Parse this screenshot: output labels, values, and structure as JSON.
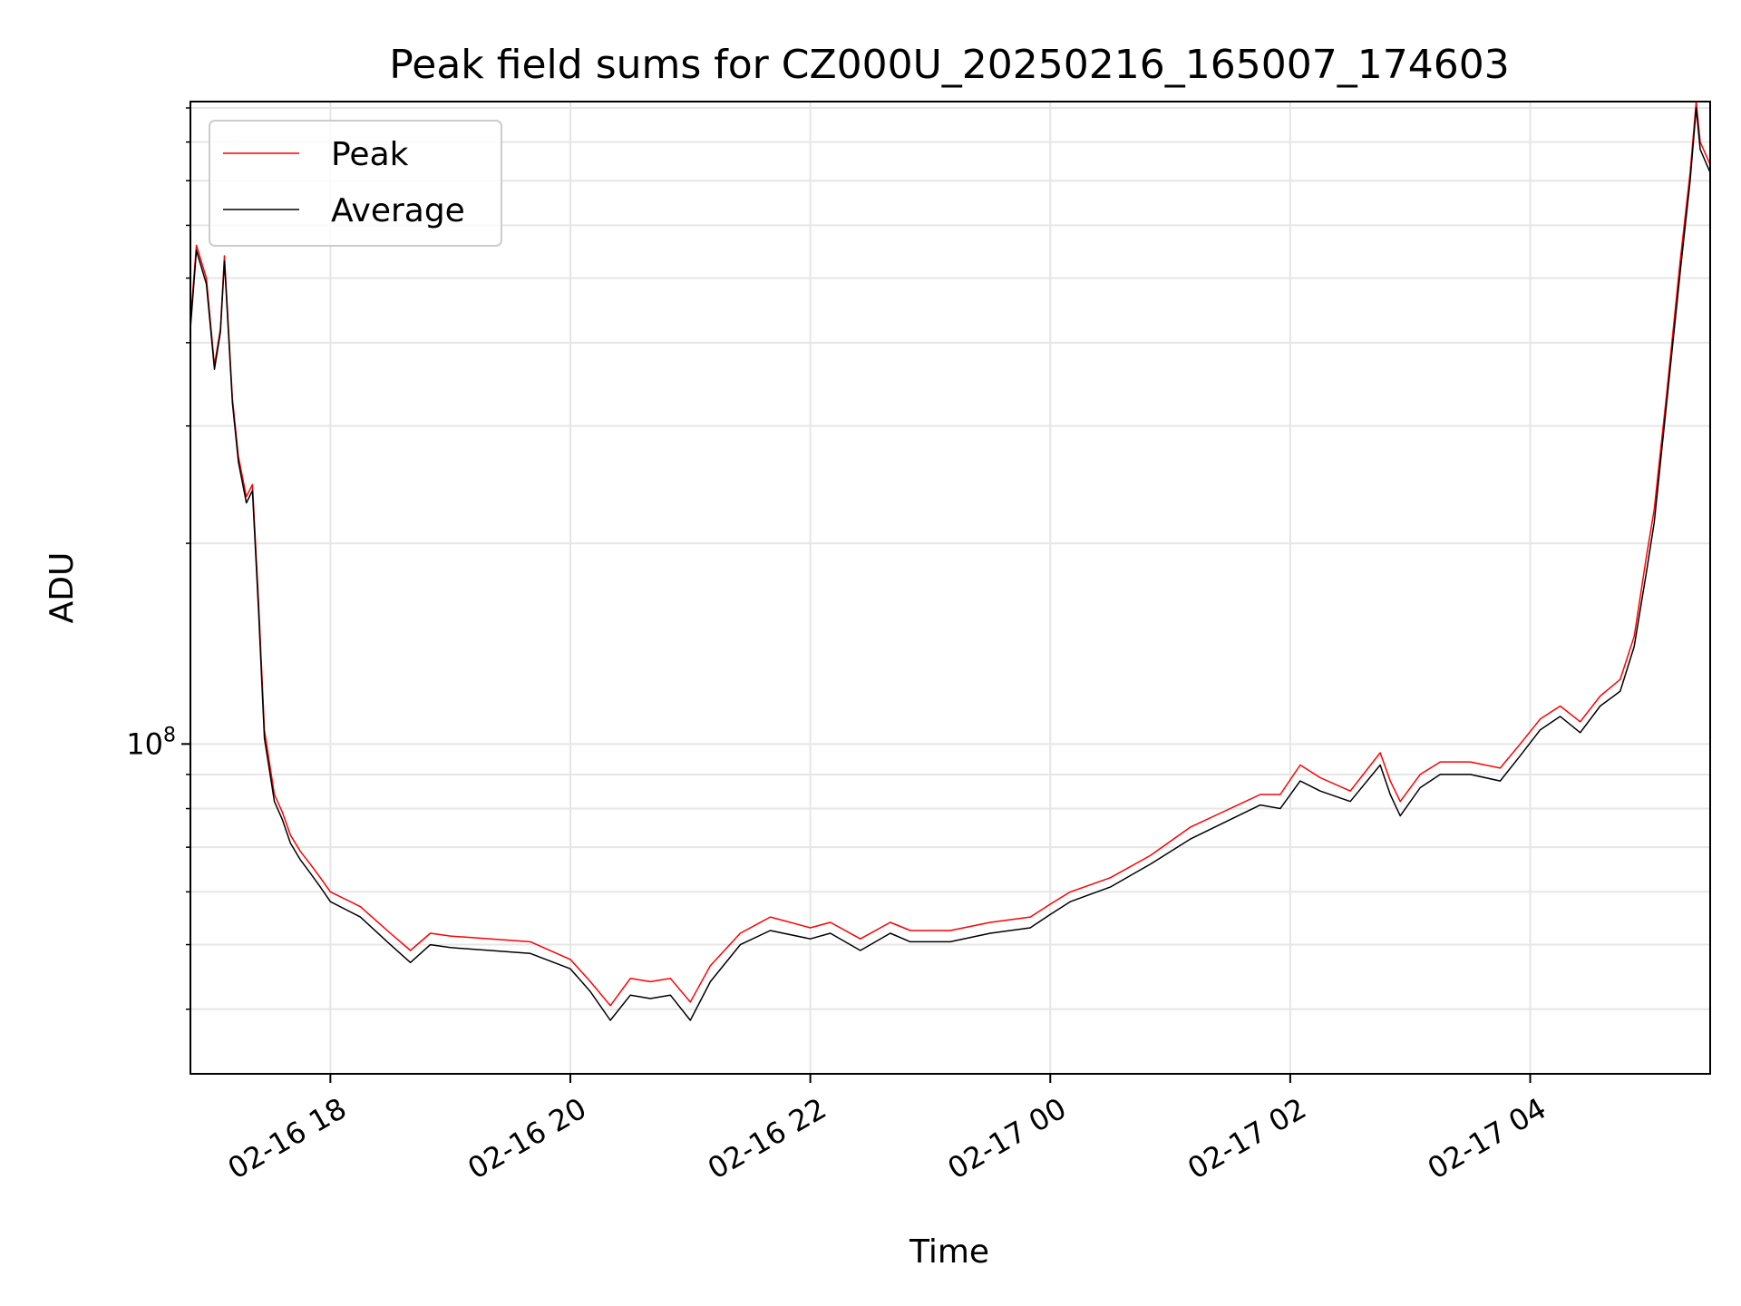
{
  "chart_data": {
    "type": "line",
    "title": "Peak field sums for CZ000U_20250216_165007_174603",
    "xlabel": "Time",
    "ylabel": "ADU",
    "y_scale": "log",
    "grid": true,
    "legend_position": "top-left",
    "xlim": [
      "2025-02-16 16:50",
      "2025-02-17 05:30"
    ],
    "ylim": [
      32000000,
      920000000
    ],
    "x_ticks": [
      {
        "value": "2025-02-16 18:00",
        "label": "02-16 18"
      },
      {
        "value": "2025-02-16 20:00",
        "label": "02-16 20"
      },
      {
        "value": "2025-02-16 22:00",
        "label": "02-16 22"
      },
      {
        "value": "2025-02-17 00:00",
        "label": "02-17 00"
      },
      {
        "value": "2025-02-17 02:00",
        "label": "02-17 02"
      },
      {
        "value": "2025-02-17 04:00",
        "label": "02-17 04"
      }
    ],
    "y_ticks": [
      {
        "value": 100000000,
        "base": "10",
        "exponent": "8"
      }
    ],
    "y_minor_ticks": [
      40000000,
      50000000,
      60000000,
      70000000,
      80000000,
      90000000,
      200000000,
      300000000,
      400000000,
      500000000,
      600000000,
      700000000,
      800000000,
      900000000
    ],
    "series": [
      {
        "name": "Peak",
        "color": "#ff0000",
        "x": [
          "2025-02-16 16:50",
          "2025-02-16 16:53",
          "2025-02-16 16:58",
          "2025-02-16 17:02",
          "2025-02-16 17:05",
          "2025-02-16 17:07",
          "2025-02-16 17:11",
          "2025-02-16 17:14",
          "2025-02-16 17:18",
          "2025-02-16 17:21",
          "2025-02-16 17:24",
          "2025-02-16 17:27",
          "2025-02-16 17:32",
          "2025-02-16 17:36",
          "2025-02-16 17:40",
          "2025-02-16 17:45",
          "2025-02-16 17:50",
          "2025-02-16 17:55",
          "2025-02-16 18:00",
          "2025-02-16 18:15",
          "2025-02-16 18:30",
          "2025-02-16 18:40",
          "2025-02-16 18:50",
          "2025-02-16 19:00",
          "2025-02-16 19:20",
          "2025-02-16 19:40",
          "2025-02-16 20:00",
          "2025-02-16 20:10",
          "2025-02-16 20:20",
          "2025-02-16 20:30",
          "2025-02-16 20:40",
          "2025-02-16 20:50",
          "2025-02-16 21:00",
          "2025-02-16 21:10",
          "2025-02-16 21:25",
          "2025-02-16 21:40",
          "2025-02-16 22:00",
          "2025-02-16 22:10",
          "2025-02-16 22:25",
          "2025-02-16 22:40",
          "2025-02-16 22:50",
          "2025-02-16 23:10",
          "2025-02-16 23:30",
          "2025-02-16 23:50",
          "2025-02-17 00:00",
          "2025-02-17 00:10",
          "2025-02-17 00:30",
          "2025-02-17 00:50",
          "2025-02-17 01:10",
          "2025-02-17 01:30",
          "2025-02-17 01:45",
          "2025-02-17 01:55",
          "2025-02-17 02:05",
          "2025-02-17 02:15",
          "2025-02-17 02:30",
          "2025-02-17 02:45",
          "2025-02-17 02:50",
          "2025-02-17 02:55",
          "2025-02-17 03:05",
          "2025-02-17 03:15",
          "2025-02-17 03:30",
          "2025-02-17 03:45",
          "2025-02-17 03:55",
          "2025-02-17 04:05",
          "2025-02-17 04:15",
          "2025-02-17 04:25",
          "2025-02-17 04:35",
          "2025-02-17 04:45",
          "2025-02-17 04:52",
          "2025-02-17 04:58",
          "2025-02-17 05:02",
          "2025-02-17 05:08",
          "2025-02-17 05:15",
          "2025-02-17 05:20",
          "2025-02-17 05:23",
          "2025-02-17 05:25",
          "2025-02-17 05:30"
        ],
        "y": [
          430000000,
          560000000,
          500000000,
          370000000,
          420000000,
          540000000,
          330000000,
          270000000,
          235000000,
          245000000,
          165000000,
          105000000,
          84000000,
          79000000,
          73000000,
          69000000,
          66000000,
          63000000,
          60000000,
          57000000,
          52000000,
          49000000,
          52000000,
          51500000,
          51000000,
          50500000,
          47500000,
          44000000,
          40500000,
          44500000,
          44000000,
          44500000,
          41000000,
          46500000,
          52000000,
          55000000,
          53000000,
          54000000,
          51000000,
          54000000,
          52500000,
          52500000,
          54000000,
          55000000,
          57500000,
          60000000,
          63000000,
          68000000,
          75000000,
          80000000,
          84000000,
          84000000,
          93000000,
          89000000,
          85000000,
          97000000,
          88000000,
          82000000,
          90000000,
          94000000,
          94000000,
          92000000,
          100000000,
          109000000,
          114000000,
          108000000,
          118000000,
          125000000,
          145000000,
          190000000,
          225000000,
          330000000,
          530000000,
          720000000,
          920000000,
          800000000,
          740000000
        ]
      },
      {
        "name": "Average",
        "color": "#000000",
        "x": [
          "2025-02-16 16:50",
          "2025-02-16 16:53",
          "2025-02-16 16:58",
          "2025-02-16 17:02",
          "2025-02-16 17:05",
          "2025-02-16 17:07",
          "2025-02-16 17:11",
          "2025-02-16 17:14",
          "2025-02-16 17:18",
          "2025-02-16 17:21",
          "2025-02-16 17:24",
          "2025-02-16 17:27",
          "2025-02-16 17:32",
          "2025-02-16 17:36",
          "2025-02-16 17:40",
          "2025-02-16 17:45",
          "2025-02-16 17:50",
          "2025-02-16 17:55",
          "2025-02-16 18:00",
          "2025-02-16 18:15",
          "2025-02-16 18:30",
          "2025-02-16 18:40",
          "2025-02-16 18:50",
          "2025-02-16 19:00",
          "2025-02-16 19:20",
          "2025-02-16 19:40",
          "2025-02-16 20:00",
          "2025-02-16 20:10",
          "2025-02-16 20:20",
          "2025-02-16 20:30",
          "2025-02-16 20:40",
          "2025-02-16 20:50",
          "2025-02-16 21:00",
          "2025-02-16 21:10",
          "2025-02-16 21:25",
          "2025-02-16 21:40",
          "2025-02-16 22:00",
          "2025-02-16 22:10",
          "2025-02-16 22:25",
          "2025-02-16 22:40",
          "2025-02-16 22:50",
          "2025-02-16 23:10",
          "2025-02-16 23:30",
          "2025-02-16 23:50",
          "2025-02-17 00:00",
          "2025-02-17 00:10",
          "2025-02-17 00:30",
          "2025-02-17 00:50",
          "2025-02-17 01:10",
          "2025-02-17 01:30",
          "2025-02-17 01:45",
          "2025-02-17 01:55",
          "2025-02-17 02:05",
          "2025-02-17 02:15",
          "2025-02-17 02:30",
          "2025-02-17 02:45",
          "2025-02-17 02:50",
          "2025-02-17 02:55",
          "2025-02-17 03:05",
          "2025-02-17 03:15",
          "2025-02-17 03:30",
          "2025-02-17 03:45",
          "2025-02-17 03:55",
          "2025-02-17 04:05",
          "2025-02-17 04:15",
          "2025-02-17 04:25",
          "2025-02-17 04:35",
          "2025-02-17 04:45",
          "2025-02-17 04:52",
          "2025-02-17 04:58",
          "2025-02-17 05:02",
          "2025-02-17 05:08",
          "2025-02-17 05:15",
          "2025-02-17 05:20",
          "2025-02-17 05:23",
          "2025-02-17 05:25",
          "2025-02-17 05:30"
        ],
        "y": [
          420000000,
          550000000,
          490000000,
          365000000,
          415000000,
          530000000,
          325000000,
          265000000,
          230000000,
          240000000,
          160000000,
          102000000,
          82000000,
          77000000,
          71000000,
          67000000,
          64000000,
          61000000,
          58000000,
          55000000,
          50000000,
          47000000,
          50000000,
          49500000,
          49000000,
          48500000,
          46000000,
          42500000,
          38500000,
          42000000,
          41500000,
          42000000,
          38500000,
          44000000,
          50000000,
          52500000,
          51000000,
          52000000,
          49000000,
          52000000,
          50500000,
          50500000,
          52000000,
          53000000,
          55500000,
          58000000,
          61000000,
          66000000,
          72000000,
          77000000,
          81000000,
          80000000,
          88000000,
          85000000,
          82000000,
          93000000,
          84000000,
          78000000,
          86000000,
          90000000,
          90000000,
          88000000,
          96000000,
          105000000,
          110000000,
          104000000,
          114000000,
          120000000,
          140000000,
          180000000,
          215000000,
          320000000,
          510000000,
          700000000,
          900000000,
          780000000,
          720000000
        ]
      }
    ]
  }
}
